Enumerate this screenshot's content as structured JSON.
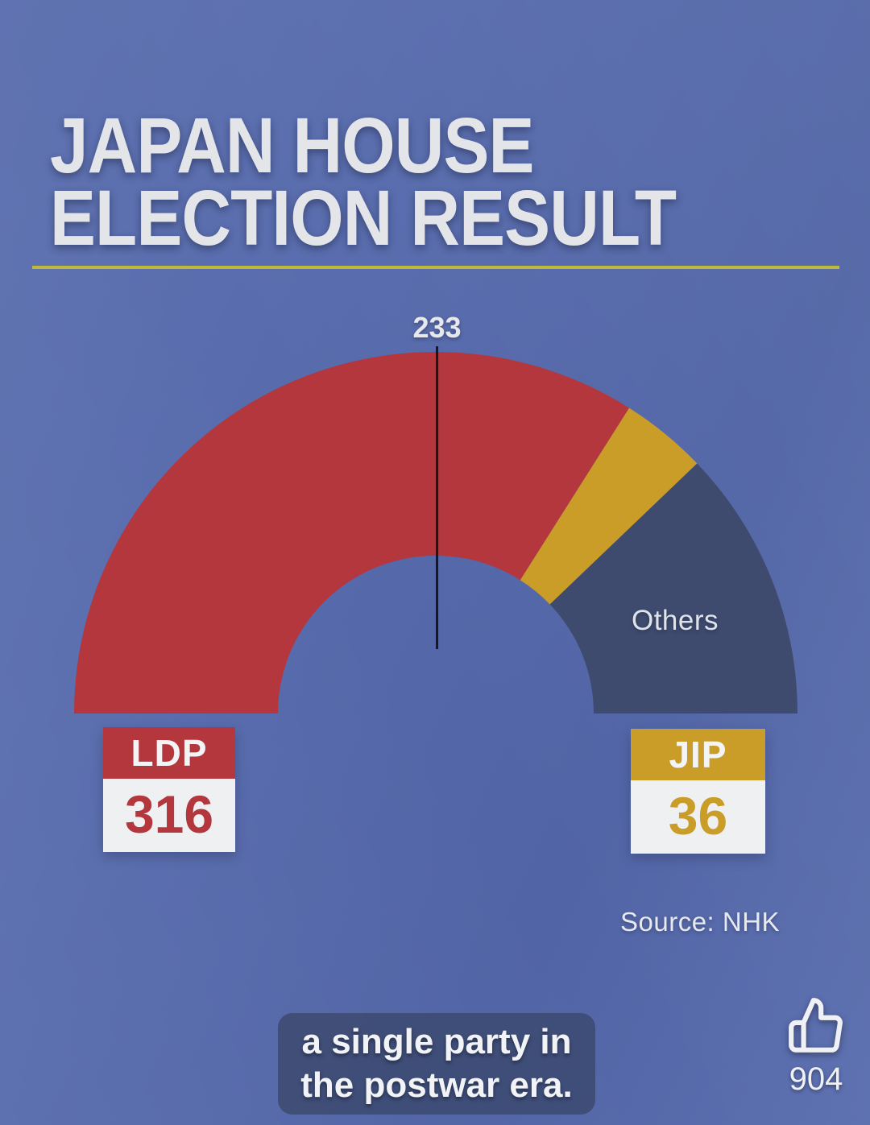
{
  "page": {
    "background_color": "#5468ab"
  },
  "header": {
    "title_line1": "JAPAN HOUSE",
    "title_line2": "ELECTION RESULT",
    "underline_color": "#bdb93b"
  },
  "chart_data": {
    "type": "half_donut",
    "title": "JAPAN HOUSE ELECTION RESULT",
    "total_seats": 465,
    "majority_marker": {
      "value": 233,
      "label": "233"
    },
    "series": [
      {
        "name": "LDP",
        "seats": 316,
        "color": "#b4373e"
      },
      {
        "name": "JIP",
        "seats": 36,
        "color": "#ca9d29"
      },
      {
        "name": "Others",
        "seats": 113,
        "color": "#3f4b6e"
      }
    ],
    "others_label": "Others",
    "marker_line_color": "#17171c",
    "legend_position": "inside-segment"
  },
  "party_cards": [
    {
      "name": "LDP",
      "value": "316",
      "color": "#b4373e"
    },
    {
      "name": "JIP",
      "value": "36",
      "color": "#ca9d29"
    }
  ],
  "source_text": "Source: NHK",
  "caption": {
    "line1": "a single party in",
    "line2": "the postwar era."
  },
  "like_overlay": {
    "icon": "thumbs-up-icon",
    "count": "904"
  }
}
